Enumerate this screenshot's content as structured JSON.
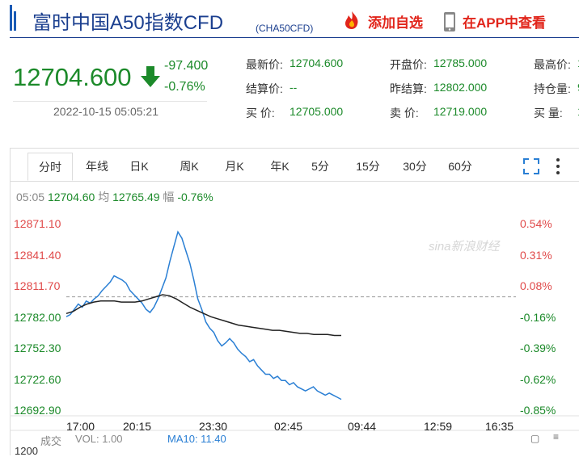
{
  "header": {
    "title": "富时中国A50指数CFD",
    "subtitle": "(CHA50CFD)",
    "add_watchlist": "添加自选",
    "view_in_app": "在APP中查看",
    "icons": [
      "fire-icon",
      "phone-icon"
    ]
  },
  "quote": {
    "price": "12704.600",
    "change": "-97.400",
    "change_pct": "-0.76%",
    "time": "2022-10-15 05:05:21",
    "fields": [
      {
        "label": "最新价:",
        "value": "12704.600"
      },
      {
        "label": "开盘价:",
        "value": "12785.000"
      },
      {
        "label": "最高价:",
        "value": "1"
      },
      {
        "label": "结算价:",
        "value": "--"
      },
      {
        "label": "昨结算:",
        "value": "12802.000"
      },
      {
        "label": "持仓量:",
        "value": "9"
      },
      {
        "label": "买 价:",
        "value": "12705.000"
      },
      {
        "label": "卖 价:",
        "value": "12719.000"
      },
      {
        "label": "买 量:",
        "value": "1"
      }
    ]
  },
  "tabs": [
    "分时",
    "年线",
    "日K",
    "周K",
    "月K",
    "年K",
    "5分",
    "15分",
    "30分",
    "60分"
  ],
  "info": {
    "time": "05:05",
    "price": "12704.60",
    "avg_label": "均",
    "avg": "12765.49",
    "pct_label": "幅",
    "pct": "-0.76%"
  },
  "watermark": "sina新浪财经",
  "colors": {
    "up": "#e04a4a",
    "down": "#1c8a2a",
    "line": "#2a7fd4",
    "avg": "#222222"
  },
  "chart_data": {
    "type": "line",
    "ylim": [
      12692.9,
      12871.1
    ],
    "ref_price": 12802.0,
    "y_ticks_left": [
      "12871.10",
      "12841.40",
      "12811.70",
      "12782.00",
      "12752.30",
      "12722.60",
      "12692.90"
    ],
    "y_ticks_right": [
      "0.54%",
      "0.31%",
      "0.08%",
      "-0.16%",
      "-0.39%",
      "-0.62%",
      "-0.85%"
    ],
    "x_ticks": [
      "17:00",
      "20:15",
      "23:30",
      "02:45",
      "09:44",
      "12:59",
      "16:35"
    ],
    "series": [
      {
        "values": [
          12783,
          12785,
          12790,
          12795,
          12792,
          12798,
          12796,
          12800,
          12803,
          12808,
          12812,
          12816,
          12822,
          12820,
          12818,
          12815,
          12808,
          12804,
          12800,
          12796,
          12790,
          12787,
          12792,
          12800,
          12810,
          12820,
          12836,
          12850,
          12864,
          12858,
          12846,
          12834,
          12818,
          12800,
          12790,
          12778,
          12772,
          12768,
          12760,
          12755,
          12758,
          12762,
          12758,
          12752,
          12748,
          12745,
          12740,
          12742,
          12736,
          12732,
          12728,
          12728,
          12724,
          12726,
          12722,
          12722,
          12718,
          12720,
          12716,
          12714,
          12712,
          12714,
          12716,
          12712,
          12710,
          12708,
          12710,
          12708,
          12706,
          12704
        ]
      },
      {
        "values": [
          12786,
          12788,
          12792,
          12795,
          12797,
          12798,
          12798,
          12798,
          12797,
          12797,
          12797,
          12798,
          12800,
          12802,
          12804,
          12803,
          12800,
          12796,
          12792,
          12789,
          12786,
          12783,
          12781,
          12779,
          12777,
          12775,
          12774,
          12773,
          12772,
          12771,
          12770,
          12770,
          12769,
          12768,
          12767,
          12767,
          12766,
          12766,
          12766,
          12765,
          12765
        ]
      }
    ],
    "volume": {
      "label": "成交",
      "vol_label": "VOL: 1.00",
      "ma_label": "MA10: 11.40",
      "tick": "1200"
    }
  }
}
